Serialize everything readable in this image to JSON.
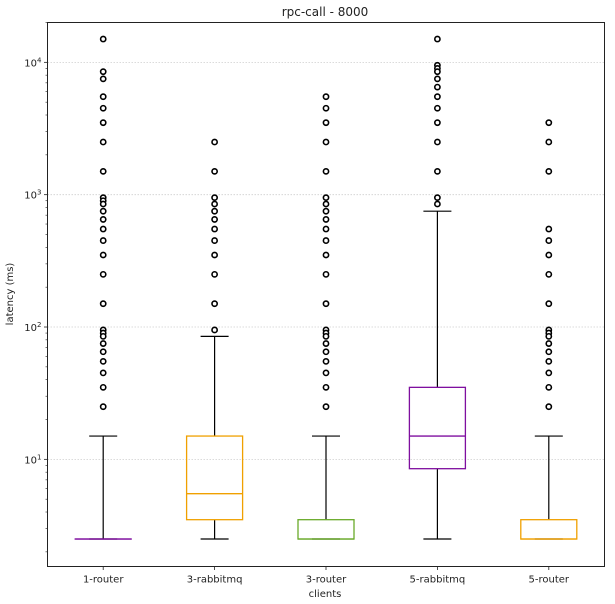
{
  "chart_data": {
    "type": "boxplot",
    "title": "rpc-call - 8000",
    "xlabel": "clients",
    "ylabel": "latency (ms)",
    "yscale": "log",
    "ylim": [
      1.55,
      20000
    ],
    "yticks": [
      {
        "value": 10,
        "base": "10",
        "exp": "1"
      },
      {
        "value": 100,
        "base": "10",
        "exp": "2"
      },
      {
        "value": 1000,
        "base": "10",
        "exp": "3"
      },
      {
        "value": 10000,
        "base": "10",
        "exp": "4"
      }
    ],
    "grid": "y-major-dotted",
    "categories": [
      "1-router",
      "3-rabbitmq",
      "3-router",
      "5-rabbitmq",
      "5-router"
    ],
    "series": [
      {
        "name": "1-router",
        "color": "#7f0f9f",
        "whislo": 2.5,
        "q1": 2.5,
        "median": 2.5,
        "q3": 2.5,
        "whishi": 15,
        "fliers": [
          15000,
          8500,
          7500,
          5500,
          4500,
          3500,
          2500,
          1500,
          950,
          900,
          850,
          750,
          650,
          550,
          450,
          350,
          250,
          150,
          95,
          90,
          85,
          75,
          65,
          55,
          45,
          35,
          25
        ]
      },
      {
        "name": "3-rabbitmq",
        "color": "#f0a000",
        "whislo": 2.5,
        "q1": 3.5,
        "median": 5.5,
        "q3": 15,
        "whishi": 85,
        "fliers": [
          2500,
          1500,
          950,
          850,
          750,
          650,
          550,
          450,
          350,
          250,
          150,
          95
        ]
      },
      {
        "name": "3-router",
        "color": "#6aaa2a",
        "whislo": 2.5,
        "q1": 2.5,
        "median": 2.5,
        "q3": 3.5,
        "whishi": 15,
        "fliers": [
          5500,
          4500,
          3500,
          2500,
          1500,
          950,
          850,
          750,
          650,
          550,
          450,
          350,
          250,
          150,
          95,
          90,
          85,
          75,
          65,
          55,
          45,
          35,
          25
        ]
      },
      {
        "name": "5-rabbitmq",
        "color": "#7f0f9f",
        "whislo": 2.5,
        "q1": 8.5,
        "median": 15,
        "q3": 35,
        "whishi": 750,
        "fliers": [
          15000,
          9500,
          9000,
          8500,
          7500,
          6500,
          5500,
          4500,
          3500,
          2500,
          1500,
          950,
          850
        ]
      },
      {
        "name": "5-router",
        "color": "#f0a000",
        "whislo": 2.5,
        "q1": 2.5,
        "median": 2.5,
        "q3": 3.5,
        "whishi": 15,
        "fliers": [
          3500,
          2500,
          1500,
          550,
          450,
          350,
          250,
          150,
          95,
          90,
          85,
          75,
          65,
          55,
          45,
          35,
          25
        ]
      }
    ]
  }
}
